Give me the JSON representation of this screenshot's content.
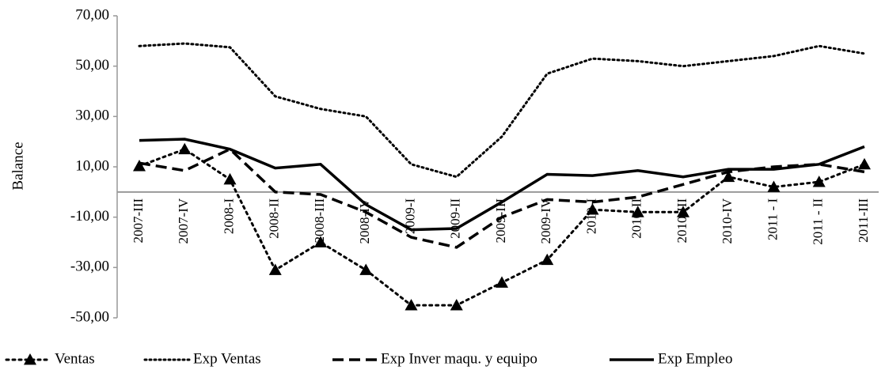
{
  "chart_data": {
    "type": "line",
    "y_label": "Balance",
    "categories": [
      "2007-III",
      "2007-IV",
      "2008-I",
      "2008-II",
      "2008-III",
      "2008-IV",
      "2009-I",
      "2009-II",
      "2009-III",
      "2009-IV",
      "2010-I",
      "2010-II",
      "2010-III",
      "2010-IV",
      "2011 - I",
      "2011 - II",
      "2011-III"
    ],
    "series": [
      {
        "name": "Ventas",
        "color": "#000000",
        "line_style": "dotted",
        "marker": "triangle",
        "values": [
          10.3,
          17,
          5,
          -31,
          -20,
          -31,
          -45,
          -45,
          -36,
          -27,
          -7,
          -8,
          -8,
          6,
          2,
          4,
          11
        ]
      },
      {
        "name": "Exp Ventas",
        "color": "#000000",
        "line_style": "fine-dotted",
        "marker": null,
        "values": [
          58,
          59,
          57.5,
          38,
          33,
          30,
          11,
          6,
          22,
          47,
          53,
          52,
          50,
          52,
          54,
          58,
          55
        ]
      },
      {
        "name": "Exp Inver  maqu. y equipo",
        "color": "#000000",
        "line_style": "dashed",
        "marker": null,
        "values": [
          11.5,
          8.5,
          17,
          0,
          -1,
          -8,
          -18,
          -22,
          -10,
          -3,
          -4,
          -2,
          3,
          8,
          10,
          11,
          8
        ]
      },
      {
        "name": "Exp Empleo",
        "color": "#000000",
        "line_style": "solid",
        "marker": null,
        "values": [
          20.5,
          21,
          17,
          9.5,
          11,
          -5,
          -15,
          -14.5,
          -4,
          7,
          6.5,
          8.5,
          6,
          9,
          9,
          11,
          18
        ]
      }
    ],
    "ylim": [
      -50,
      70
    ],
    "yticks": [
      {
        "value": -50,
        "label": "-50,00"
      },
      {
        "value": -30,
        "label": "-30,00"
      },
      {
        "value": -10,
        "label": "-10,00"
      },
      {
        "value": 10,
        "label": "10,00"
      },
      {
        "value": 30,
        "label": "30,00"
      },
      {
        "value": 50,
        "label": "50,00"
      },
      {
        "value": 70,
        "label": "70,00"
      }
    ],
    "legend_position": "bottom"
  }
}
